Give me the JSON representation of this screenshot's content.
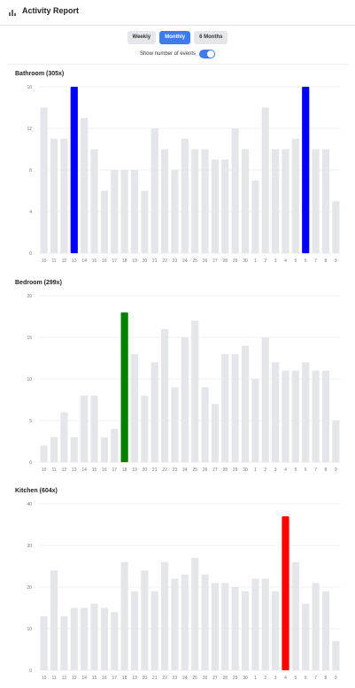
{
  "header": {
    "title": "Activity Report",
    "icon": "bar-chart-icon"
  },
  "tabs": [
    {
      "label": "Weekly",
      "active": false
    },
    {
      "label": "Monthly",
      "active": true
    },
    {
      "label": "6 Months",
      "active": false
    }
  ],
  "toggle": {
    "label": "Show number of events",
    "on": true,
    "color": "#3d7bf0"
  },
  "chart_data": [
    {
      "type": "bar",
      "title": "Bathroom (305x)",
      "categories": [
        "10",
        "11",
        "12",
        "13",
        "14",
        "15",
        "16",
        "17",
        "18",
        "19",
        "20",
        "21",
        "22",
        "23",
        "24",
        "25",
        "26",
        "27",
        "28",
        "29",
        "30",
        "1",
        "2",
        "3",
        "4",
        "5",
        "6",
        "7",
        "8",
        "9"
      ],
      "values": [
        14,
        11,
        11,
        16,
        13,
        10,
        6,
        8,
        8,
        8,
        6,
        12,
        10,
        8,
        11,
        10,
        10,
        9,
        9,
        12,
        10,
        7,
        14,
        10,
        10,
        11,
        16,
        10,
        10,
        5
      ],
      "highlight": {
        "3": "#0000ff",
        "26": "#0000ff"
      },
      "yticks": [
        0,
        4,
        8,
        12,
        16
      ],
      "ylim": [
        0,
        16
      ],
      "bar_color": "#e5e6ea"
    },
    {
      "type": "bar",
      "title": "Bedroom (299x)",
      "categories": [
        "10",
        "11",
        "12",
        "13",
        "14",
        "15",
        "16",
        "17",
        "18",
        "19",
        "20",
        "21",
        "22",
        "23",
        "24",
        "25",
        "26",
        "27",
        "28",
        "29",
        "30",
        "1",
        "2",
        "3",
        "4",
        "5",
        "6",
        "7",
        "8",
        "9"
      ],
      "values": [
        2,
        3,
        6,
        3,
        8,
        8,
        3,
        4,
        18,
        13,
        8,
        12,
        16,
        9,
        15,
        17,
        9,
        7,
        13,
        13,
        14,
        10,
        15,
        12,
        11,
        11,
        12,
        11,
        11,
        5
      ],
      "highlight": {
        "8": "#008000"
      },
      "yticks": [
        0,
        5,
        10,
        15,
        20
      ],
      "ylim": [
        0,
        20
      ],
      "bar_color": "#e5e6ea"
    },
    {
      "type": "bar",
      "title": "Kitchen (604x)",
      "categories": [
        "10",
        "11",
        "12",
        "13",
        "14",
        "15",
        "16",
        "17",
        "18",
        "19",
        "20",
        "21",
        "22",
        "23",
        "24",
        "25",
        "26",
        "27",
        "28",
        "29",
        "30",
        "1",
        "2",
        "3",
        "4",
        "5",
        "6",
        "7",
        "8",
        "9"
      ],
      "values": [
        13,
        24,
        13,
        15,
        15,
        16,
        15,
        14,
        26,
        19,
        24,
        19,
        26,
        22,
        23,
        27,
        23,
        21,
        21,
        20,
        19,
        22,
        22,
        19,
        37,
        26,
        16,
        21,
        19,
        7
      ],
      "highlight": {
        "24": "#ff0000"
      },
      "yticks": [
        0,
        10,
        20,
        30,
        40
      ],
      "ylim": [
        0,
        40
      ],
      "bar_color": "#e5e6ea"
    }
  ]
}
